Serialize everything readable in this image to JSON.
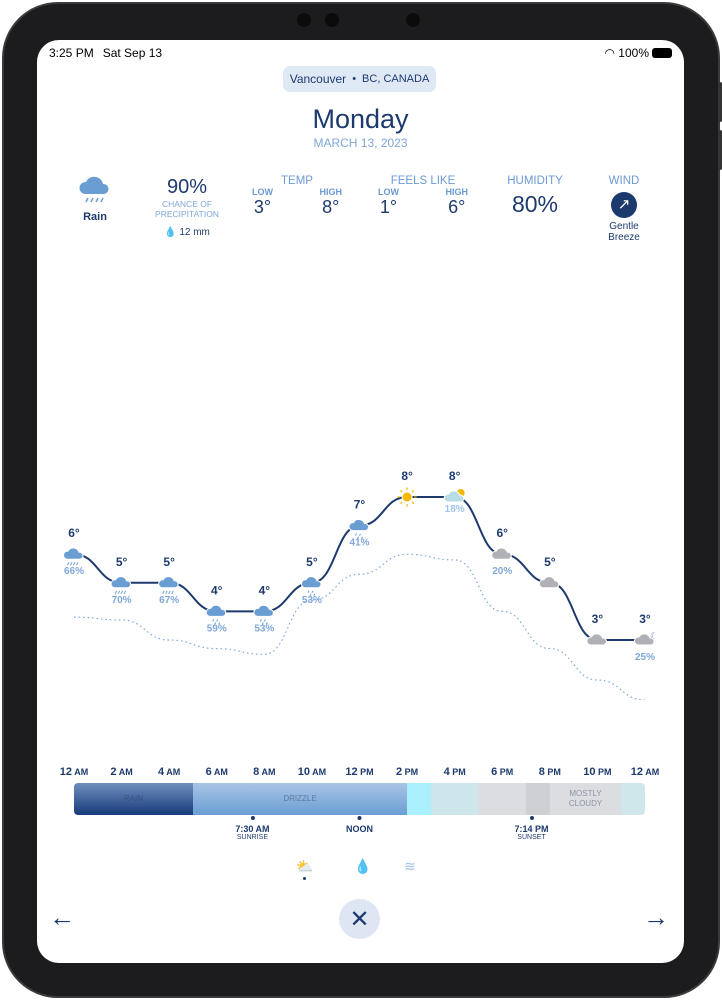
{
  "status_bar": {
    "time": "3:25 PM",
    "date": "Sat Sep 13",
    "battery": "100%"
  },
  "location": {
    "city": "Vancouver",
    "separator": "•",
    "region": "BC, CANADA"
  },
  "header": {
    "day": "Monday",
    "date": "MARCH 13, 2023"
  },
  "summary": {
    "condition": "Rain",
    "condition_icon": "rain-cloud-icon",
    "precip_percent": "90%",
    "precip_label_1": "CHANCE OF",
    "precip_label_2": "PRECIPITATION",
    "precip_amount": "12 mm",
    "temp": {
      "title": "TEMP",
      "low_label": "LOW",
      "low": "3°",
      "high_label": "HIGH",
      "high": "8°"
    },
    "feels_like": {
      "title": "FEELS LIKE",
      "low_label": "LOW",
      "low": "1°",
      "high_label": "HIGH",
      "high": "6°"
    },
    "humidity": {
      "title": "HUMIDITY",
      "value": "80%"
    },
    "wind": {
      "title": "WIND",
      "line1": "Gentle",
      "line2": "Breeze",
      "direction_icon": "arrow-up-right-icon"
    }
  },
  "chart_data": {
    "type": "line",
    "x": [
      "12 AM",
      "2 AM",
      "4 AM",
      "6 AM",
      "8 AM",
      "10 AM",
      "12 PM",
      "2 PM",
      "4 PM",
      "6 PM",
      "8 PM",
      "10 PM",
      "12 AM"
    ],
    "series": [
      {
        "values": [
          6,
          5,
          5,
          4,
          4,
          5,
          7,
          8,
          8,
          6,
          5,
          3,
          3
        ],
        "labels": [
          "6°",
          "5°",
          "5°",
          "4°",
          "4°",
          "5°",
          "7°",
          "8°",
          "8°",
          "6°",
          "5°",
          "3°",
          "3°"
        ],
        "style": "solid",
        "color": "#1d3a6e"
      },
      {
        "values": [
          3.8,
          3.7,
          3,
          2.7,
          2.5,
          4.4,
          5.3,
          6,
          5.8,
          4,
          2.7,
          1.6,
          0.9
        ],
        "style": "dotted",
        "color": "#7fa7d8"
      }
    ],
    "precipitation": [
      "66%",
      "70%",
      "67%",
      "59%",
      "53%",
      "53%",
      "41%",
      null,
      "18%",
      "20%",
      null,
      null,
      "25%"
    ],
    "icons": [
      "rain",
      "rain",
      "rain",
      "drizzle",
      "drizzle",
      "drizzle",
      "drizzle",
      "sun",
      "partly-sunny",
      "cloud",
      "cloud",
      "cloud",
      "partly-cloudy-night"
    ]
  },
  "timeline": {
    "labels": [
      {
        "n": "12",
        "p": "AM"
      },
      {
        "n": "2",
        "p": "AM"
      },
      {
        "n": "4",
        "p": "AM"
      },
      {
        "n": "6",
        "p": "AM"
      },
      {
        "n": "8",
        "p": "AM"
      },
      {
        "n": "10",
        "p": "AM"
      },
      {
        "n": "12",
        "p": "PM"
      },
      {
        "n": "2",
        "p": "PM"
      },
      {
        "n": "4",
        "p": "PM"
      },
      {
        "n": "6",
        "p": "PM"
      },
      {
        "n": "8",
        "p": "PM"
      },
      {
        "n": "10",
        "p": "PM"
      },
      {
        "n": "12",
        "p": "AM"
      }
    ],
    "segments": [
      {
        "start": 0,
        "end": 5,
        "label": "RAIN",
        "color": "linear-gradient(#6f8fbd,#163a7a)"
      },
      {
        "start": 5,
        "end": 14,
        "label": "DRIZZLE",
        "color": "linear-gradient(#a9c4e6,#6a9ed3)"
      },
      {
        "start": 14,
        "end": 15,
        "label": "",
        "color": "#aaf0ff"
      },
      {
        "start": 15,
        "end": 17,
        "label": "",
        "color": "#cde6ec"
      },
      {
        "start": 17,
        "end": 19,
        "label": "",
        "color": "#dcdde1"
      },
      {
        "start": 19,
        "end": 20,
        "label": "",
        "color": "#cfd0d4"
      },
      {
        "start": 20,
        "end": 23,
        "label": "MOSTLY CLOUDY",
        "color": "#dcdde1"
      },
      {
        "start": 23,
        "end": 24,
        "label": "",
        "color": "#cfe6ea"
      }
    ],
    "markers": [
      {
        "hour": 7.5,
        "time": "7:30 AM",
        "label": "SUNRISE"
      },
      {
        "hour": 12,
        "time": "NOON",
        "label": ""
      },
      {
        "hour": 19.23,
        "time": "7:14 PM",
        "label": "SUNSET"
      }
    ]
  },
  "modes": [
    {
      "icon": "weather-icon",
      "selected": true
    },
    {
      "icon": "drop-icon",
      "selected": false
    },
    {
      "icon": "wind-icon",
      "selected": false
    }
  ]
}
